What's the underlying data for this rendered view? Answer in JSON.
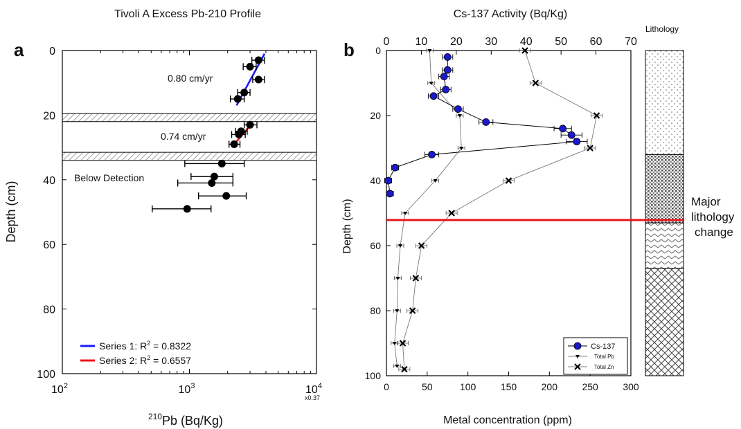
{
  "panel_a": {
    "letter": "a",
    "title": "Tivoli A Excess Pb-210 Profile",
    "ylabel": "Depth (cm)",
    "xlabel_sup": "210",
    "xlabel_main": "Pb (Bq/Kg)",
    "scale_note": "x0.37",
    "annotations": {
      "rate1": "0.80 cm/yr",
      "rate2": "0.74 cm/yr",
      "below": "Below Detection"
    },
    "legend": [
      {
        "text": "Series 1: R",
        "sup": "2",
        "tail": " = 0.8322",
        "color": "#1a1aff"
      },
      {
        "text": "Series 2: R",
        "sup": "2",
        "tail": " = 0.6557",
        "color": "#e8141b"
      }
    ],
    "xticks": [
      {
        "base": "10",
        "exp": "2"
      },
      {
        "base": "10",
        "exp": "3"
      },
      {
        "base": "10",
        "exp": "4"
      }
    ],
    "yticks": [
      "0",
      "20",
      "40",
      "60",
      "80",
      "100"
    ]
  },
  "panel_b": {
    "letter": "b",
    "top_title": "Cs-137 Activity (Bq/Kg)",
    "ylabel": "Depth (cm)",
    "xlabel": "Metal concentration (ppm)",
    "top_ticks": [
      "0",
      "10",
      "20",
      "30",
      "40",
      "50",
      "60",
      "70"
    ],
    "bottom_ticks": [
      "0",
      "50",
      "100",
      "150",
      "200",
      "250",
      "300"
    ],
    "yticks": [
      "0",
      "20",
      "40",
      "60",
      "80",
      "100"
    ],
    "legend": [
      "Cs-137",
      "Total Pb",
      "Total Zn"
    ],
    "lithology_label": "Lithology",
    "change_label": [
      "Major",
      "lithology",
      "change"
    ]
  },
  "chart_data": [
    {
      "type": "scatter",
      "title": "Tivoli A Excess Pb-210 Profile",
      "xlabel": "210Pb (Bq/Kg)",
      "ylabel": "Depth (cm)",
      "xscale": "log",
      "xlim": [
        100,
        10000
      ],
      "ylim": [
        100,
        0
      ],
      "series": [
        {
          "name": "Excess Pb-210",
          "points": [
            {
              "x": 3500,
              "y": 3,
              "xerr_lo": 3100,
              "xerr_hi": 3900
            },
            {
              "x": 3000,
              "y": 5,
              "xerr_lo": 2650,
              "xerr_hi": 3350
            },
            {
              "x": 3500,
              "y": 9,
              "xerr_lo": 3150,
              "xerr_hi": 3900
            },
            {
              "x": 2700,
              "y": 13,
              "xerr_lo": 2400,
              "xerr_hi": 3000
            },
            {
              "x": 2400,
              "y": 15,
              "xerr_lo": 2100,
              "xerr_hi": 2700
            },
            {
              "x": 3000,
              "y": 23,
              "xerr_lo": 2700,
              "xerr_hi": 3400
            },
            {
              "x": 2550,
              "y": 25,
              "xerr_lo": 2300,
              "xerr_hi": 2850
            },
            {
              "x": 2450,
              "y": 26,
              "xerr_lo": 2150,
              "xerr_hi": 2750
            },
            {
              "x": 2250,
              "y": 29,
              "xerr_lo": 2050,
              "xerr_hi": 2500
            },
            {
              "x": 1800,
              "y": 35,
              "xerr_lo": 920,
              "xerr_hi": 2700
            },
            {
              "x": 1570,
              "y": 39,
              "xerr_lo": 1030,
              "xerr_hi": 2200
            },
            {
              "x": 1500,
              "y": 41,
              "xerr_lo": 810,
              "xerr_hi": 2200
            },
            {
              "x": 1950,
              "y": 45,
              "xerr_lo": 1180,
              "xerr_hi": 2800
            },
            {
              "x": 960,
              "y": 49,
              "xerr_lo": 510,
              "xerr_hi": 1480
            }
          ]
        },
        {
          "name": "Series 1",
          "line": [
            [
              2350,
              17
            ],
            [
              3900,
              1
            ]
          ],
          "r2": 0.8322
        },
        {
          "name": "Series 2",
          "line": [
            [
              2250,
              29
            ],
            [
              3050,
              23
            ]
          ],
          "r2": 0.6557
        }
      ],
      "shaded_bands": [
        [
          19.5,
          22
        ],
        [
          31.5,
          34
        ]
      ]
    },
    {
      "type": "line",
      "xlabel": "Metal concentration (ppm)",
      "x2label": "Cs-137 Activity (Bq/Kg)",
      "ylabel": "Depth (cm)",
      "xlim": [
        0,
        300
      ],
      "x2lim": [
        0,
        70
      ],
      "ylim": [
        100,
        0
      ],
      "series": [
        {
          "name": "Cs-137",
          "axis": "top",
          "points": [
            {
              "x": 17.5,
              "y": 2,
              "xerr": 1.5
            },
            {
              "x": 17.5,
              "y": 6,
              "xerr": 1.5
            },
            {
              "x": 16.5,
              "y": 8,
              "xerr": 1.5
            },
            {
              "x": 17,
              "y": 12,
              "xerr": 1.5
            },
            {
              "x": 13.5,
              "y": 14,
              "xerr": 1.5
            },
            {
              "x": 20.5,
              "y": 18,
              "xerr": 1.5
            },
            {
              "x": 28.5,
              "y": 22,
              "xerr": 2
            },
            {
              "x": 50.5,
              "y": 24,
              "xerr": 2.5
            },
            {
              "x": 53,
              "y": 26,
              "xerr": 3
            },
            {
              "x": 54.5,
              "y": 28,
              "xerr": 3
            },
            {
              "x": 13,
              "y": 32,
              "xerr": 2
            },
            {
              "x": 2.5,
              "y": 36,
              "xerr": 1
            },
            {
              "x": 0.5,
              "y": 40,
              "xerr": 1
            },
            {
              "x": 1,
              "y": 44,
              "xerr": 1
            }
          ]
        },
        {
          "name": "Total Pb",
          "axis": "bottom",
          "points": [
            {
              "x": 53,
              "y": 0
            },
            {
              "x": 55,
              "y": 10
            },
            {
              "x": 90,
              "y": 20
            },
            {
              "x": 92,
              "y": 30
            },
            {
              "x": 60,
              "y": 40
            },
            {
              "x": 23,
              "y": 50
            },
            {
              "x": 17,
              "y": 60
            },
            {
              "x": 14,
              "y": 70
            },
            {
              "x": 13,
              "y": 80
            },
            {
              "x": 10,
              "y": 90
            },
            {
              "x": 13,
              "y": 97
            }
          ]
        },
        {
          "name": "Total Zn",
          "axis": "bottom",
          "points": [
            {
              "x": 170,
              "y": 0
            },
            {
              "x": 183,
              "y": 10
            },
            {
              "x": 258,
              "y": 20
            },
            {
              "x": 250,
              "y": 30
            },
            {
              "x": 150,
              "y": 40
            },
            {
              "x": 80,
              "y": 50
            },
            {
              "x": 43,
              "y": 60
            },
            {
              "x": 36,
              "y": 70
            },
            {
              "x": 32,
              "y": 80
            },
            {
              "x": 20,
              "y": 90
            },
            {
              "x": 22,
              "y": 98
            }
          ]
        }
      ],
      "horizontal_line": {
        "y": 53,
        "color": "#e8141b"
      },
      "lithology": [
        {
          "from": 0,
          "to": 32,
          "pattern": "dots"
        },
        {
          "from": 32,
          "to": 53,
          "pattern": "dense-grid"
        },
        {
          "from": 53,
          "to": 67,
          "pattern": "chevron"
        },
        {
          "from": 67,
          "to": 100,
          "pattern": "crosshatch"
        }
      ]
    }
  ]
}
